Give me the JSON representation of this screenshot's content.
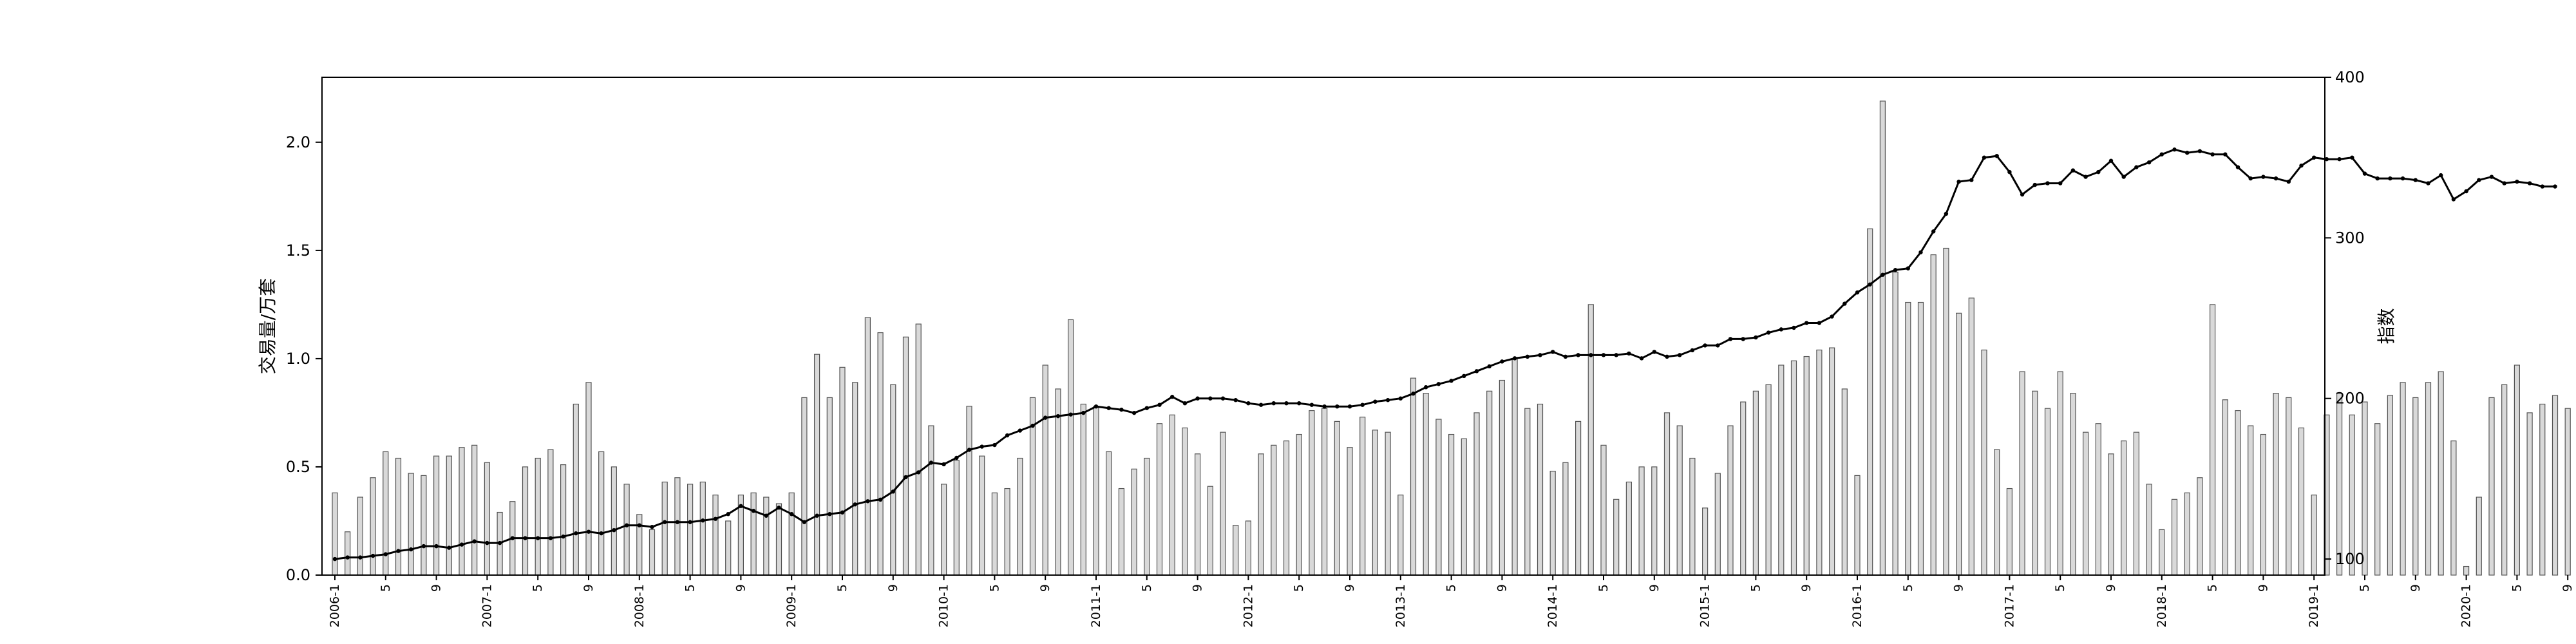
{
  "chart_data": {
    "type": "bar+line",
    "ylabel_left": "交易量/万套",
    "ylabel_right": "指数",
    "ylim_left": [
      0,
      2.3
    ],
    "ylim_right": [
      90,
      400
    ],
    "yticks_left": [
      "0.0",
      "0.5",
      "1.0",
      "1.5",
      "2.0"
    ],
    "yticks_right": [
      "100",
      "200",
      "300",
      "400"
    ],
    "grid": false,
    "legend": "none",
    "colors": {
      "bar_fill": "#d9d9d9",
      "bar_edge": "#555555",
      "line": "#000000",
      "axis": "#000000"
    },
    "x_tick_labels": [
      "2006-1",
      "5",
      "9",
      "2007-1",
      "5",
      "9",
      "2008-1",
      "5",
      "9",
      "2009-1",
      "5",
      "9",
      "2010-1",
      "5",
      "9",
      "2011-1",
      "5",
      "9",
      "2012-1",
      "5",
      "9",
      "2013-1",
      "5",
      "9",
      "2014-1",
      "5",
      "9",
      "2015-1",
      "5",
      "9",
      "2016-1",
      "5",
      "9",
      "2017-1",
      "5",
      "9",
      "2018-1",
      "5",
      "9",
      "2019-1",
      "5",
      "9",
      "2020-1",
      "5",
      "9"
    ],
    "x_tick_month_index": [
      0,
      4,
      8,
      12,
      16,
      20,
      24,
      28,
      32,
      36,
      40,
      44,
      48,
      52,
      56,
      60,
      64,
      68,
      72,
      76,
      80,
      84,
      88,
      92,
      96,
      100,
      104,
      108,
      112,
      116,
      120,
      124,
      128,
      132,
      136,
      140,
      144,
      148,
      152,
      156,
      160,
      164,
      168,
      172,
      176
    ],
    "volume": [
      0.38,
      0.2,
      0.36,
      0.45,
      0.57,
      0.54,
      0.47,
      0.46,
      0.55,
      0.55,
      0.59,
      0.6,
      0.52,
      0.29,
      0.34,
      0.5,
      0.54,
      0.58,
      0.51,
      0.79,
      0.89,
      0.57,
      0.5,
      0.42,
      0.28,
      0.21,
      0.43,
      0.45,
      0.42,
      0.43,
      0.37,
      0.25,
      0.37,
      0.38,
      0.36,
      0.33,
      0.38,
      0.82,
      1.02,
      0.82,
      0.96,
      0.89,
      1.19,
      1.12,
      0.88,
      1.1,
      1.16,
      0.69,
      0.42,
      0.53,
      0.78,
      0.55,
      0.38,
      0.4,
      0.54,
      0.82,
      0.97,
      0.86,
      1.18,
      0.79,
      0.78,
      0.57,
      0.4,
      0.49,
      0.54,
      0.7,
      0.74,
      0.68,
      0.56,
      0.41,
      0.66,
      0.23,
      0.25,
      0.56,
      0.6,
      0.62,
      0.65,
      0.76,
      0.77,
      0.71,
      0.59,
      0.73,
      0.67,
      0.66,
      0.37,
      0.91,
      0.84,
      0.72,
      0.65,
      0.63,
      0.75,
      0.85,
      0.9,
      1.0,
      0.77,
      0.79,
      0.48,
      0.52,
      0.71,
      1.25,
      0.6,
      0.35,
      0.43,
      0.5,
      0.5,
      0.75,
      0.69,
      0.54,
      0.31,
      0.47,
      0.69,
      0.8,
      0.85,
      0.88,
      0.97,
      0.99,
      1.01,
      1.04,
      1.05,
      0.86,
      0.46,
      1.6,
      2.19,
      1.4,
      1.26,
      1.26,
      1.48,
      1.51,
      1.21,
      1.28,
      1.04,
      0.58,
      0.4,
      0.94,
      0.85,
      0.77,
      0.94,
      0.84,
      0.66,
      0.7,
      0.56,
      0.62,
      0.66,
      0.42,
      0.21,
      0.35,
      0.38,
      0.45,
      1.25,
      0.81,
      0.76,
      0.69,
      0.65,
      0.84,
      0.82,
      0.68,
      0.37,
      0.74,
      0.84,
      0.74,
      0.8,
      0.7,
      0.83,
      0.89,
      0.82,
      0.89,
      0.94,
      0.62,
      0.04,
      0.36,
      0.82,
      0.88,
      0.97,
      0.75,
      0.79,
      0.83,
      0.77,
      0.89
    ],
    "index": [
      100,
      101,
      101,
      102,
      103,
      105,
      106,
      108,
      108,
      107,
      109,
      111,
      110,
      110,
      113,
      113,
      113,
      113,
      114,
      116,
      117,
      116,
      118,
      121,
      121,
      120,
      123,
      123,
      123,
      124,
      125,
      128,
      133,
      130,
      127,
      132,
      128,
      123,
      127,
      128,
      129,
      134,
      136,
      137,
      142,
      151,
      154,
      160,
      159,
      163,
      168,
      170,
      171,
      177,
      180,
      183,
      188,
      189,
      190,
      191,
      195,
      194,
      193,
      191,
      194,
      196,
      201,
      197,
      200,
      200,
      200,
      199,
      197,
      196,
      197,
      197,
      197,
      196,
      195,
      195,
      195,
      196,
      198,
      199,
      200,
      203,
      207,
      209,
      211,
      214,
      217,
      220,
      223,
      225,
      226,
      227,
      229,
      226,
      227,
      227,
      227,
      227,
      228,
      225,
      229,
      226,
      227,
      230,
      233,
      233,
      237,
      237,
      238,
      241,
      243,
      244,
      247,
      247,
      251,
      259,
      266,
      271,
      277,
      280,
      281,
      291,
      304,
      315,
      335,
      336,
      350,
      351,
      341,
      327,
      333,
      334,
      334,
      342,
      338,
      341,
      348,
      338,
      344,
      347,
      352,
      355,
      353,
      354,
      352,
      352,
      344,
      337,
      338,
      337,
      335,
      345,
      350,
      349,
      349,
      350,
      340,
      337,
      337,
      337,
      336,
      334,
      339,
      324,
      329,
      336,
      338,
      334,
      335,
      334,
      332,
      332
    ]
  }
}
